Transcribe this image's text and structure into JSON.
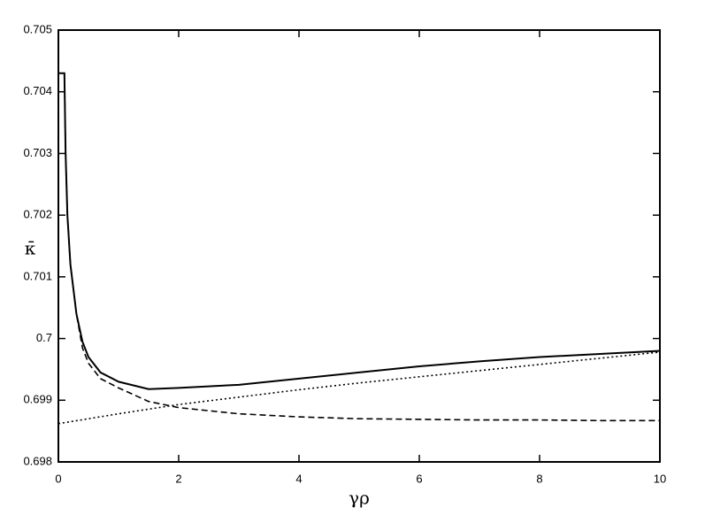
{
  "chart_data": {
    "type": "line",
    "x_label": "γρ",
    "y_label": "κ̄",
    "xlim": [
      0,
      10
    ],
    "ylim": [
      0.698,
      0.705
    ],
    "xticks": [
      0,
      2,
      4,
      6,
      8,
      10
    ],
    "yticks": [
      0.698,
      0.699,
      0.7,
      0.701,
      0.702,
      0.703,
      0.704,
      0.705
    ],
    "series": [
      {
        "color": "#000000",
        "style": "solid",
        "x": [
          0,
          0.1,
          0.12,
          0.15,
          0.2,
          0.3,
          0.4,
          0.5,
          0.7,
          1,
          1.5,
          2,
          3,
          4,
          5,
          6,
          7,
          8,
          9,
          10
        ],
        "values": [
          0.7043,
          0.7043,
          0.703,
          0.702,
          0.7012,
          0.7004,
          0.69995,
          0.6997,
          0.69945,
          0.6993,
          0.69918,
          0.6992,
          0.69925,
          0.69935,
          0.69945,
          0.69955,
          0.69963,
          0.6997,
          0.69975,
          0.6998
        ]
      },
      {
        "color": "#000000",
        "style": "dashed",
        "x": [
          0.1,
          0.12,
          0.15,
          0.2,
          0.3,
          0.4,
          0.5,
          0.7,
          1,
          1.5,
          2,
          3,
          4,
          5,
          6,
          7,
          8,
          9,
          10
        ],
        "values": [
          0.7043,
          0.703,
          0.702,
          0.7012,
          0.7004,
          0.69985,
          0.6996,
          0.69935,
          0.6992,
          0.69898,
          0.69888,
          0.69878,
          0.69873,
          0.6987,
          0.69869,
          0.69868,
          0.69868,
          0.69867,
          0.69867
        ]
      },
      {
        "color": "#000000",
        "style": "dotted",
        "x": [
          0,
          1,
          2,
          3,
          4,
          5,
          6,
          7,
          8,
          9,
          10
        ],
        "values": [
          0.69862,
          0.69878,
          0.69893,
          0.69905,
          0.69917,
          0.69928,
          0.69938,
          0.69948,
          0.69958,
          0.69968,
          0.69978
        ]
      }
    ]
  }
}
